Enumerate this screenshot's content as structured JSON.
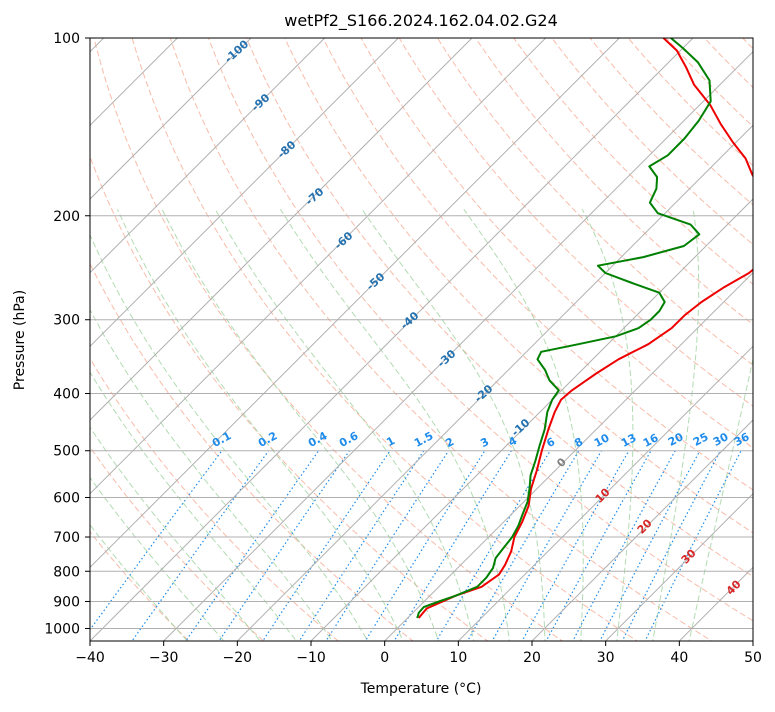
{
  "chart_data": {
    "type": "line",
    "subtype": "skew-t log-p diagram",
    "title": "wetPf2_S166.2024.162.04.02.G24",
    "xlabel": "Temperature (°C)",
    "ylabel": "Pressure (hPa)",
    "xlim": [
      -40,
      50
    ],
    "ylim": [
      1050,
      100
    ],
    "yscale": "log",
    "grid": true,
    "x_ticks": [
      -40,
      -30,
      -20,
      -10,
      0,
      10,
      20,
      30,
      40,
      50
    ],
    "y_ticks": [
      1000,
      900,
      800,
      700,
      600,
      500,
      400,
      300,
      200,
      100
    ],
    "series": [
      {
        "kind": "temperature",
        "color": "#ee0000",
        "points": [
          {
            "p": 960,
            "t": 1.5
          },
          {
            "p": 925,
            "t": 1.3
          },
          {
            "p": 880,
            "t": 3.5
          },
          {
            "p": 850,
            "t": 5.8
          },
          {
            "p": 810,
            "t": 6.5
          },
          {
            "p": 780,
            "t": 6.0
          },
          {
            "p": 740,
            "t": 5.0
          },
          {
            "p": 700,
            "t": 3.5
          },
          {
            "p": 660,
            "t": 2.5
          },
          {
            "p": 620,
            "t": 1.2
          },
          {
            "p": 580,
            "t": -0.8
          },
          {
            "p": 540,
            "t": -2.5
          },
          {
            "p": 500,
            "t": -4.5
          },
          {
            "p": 460,
            "t": -6.5
          },
          {
            "p": 430,
            "t": -8.0
          },
          {
            "p": 410,
            "t": -8.8
          },
          {
            "p": 395,
            "t": -8.6
          },
          {
            "p": 370,
            "t": -7.6
          },
          {
            "p": 350,
            "t": -6.5
          },
          {
            "p": 330,
            "t": -4.5
          },
          {
            "p": 310,
            "t": -3.5
          },
          {
            "p": 295,
            "t": -3.5
          },
          {
            "p": 280,
            "t": -3.0
          },
          {
            "p": 265,
            "t": -2.0
          },
          {
            "p": 250,
            "t": -0.5
          },
          {
            "p": 240,
            "t": -0.2
          },
          {
            "p": 230,
            "t": -2.0
          },
          {
            "p": 215,
            "t": -4.5
          },
          {
            "p": 200,
            "t": -6.5
          },
          {
            "p": 185,
            "t": -9.0
          },
          {
            "p": 170,
            "t": -13.5
          },
          {
            "p": 160,
            "t": -16.5
          },
          {
            "p": 150,
            "t": -20.5
          },
          {
            "p": 140,
            "t": -24.5
          },
          {
            "p": 130,
            "t": -28.5
          },
          {
            "p": 120,
            "t": -33.5
          },
          {
            "p": 112,
            "t": -37.0
          },
          {
            "p": 105,
            "t": -40.5
          },
          {
            "p": 100,
            "t": -44.0
          }
        ]
      },
      {
        "kind": "dewpoint",
        "color": "#008000",
        "points": [
          {
            "p": 960,
            "t": 1.3
          },
          {
            "p": 940,
            "t": 0.8
          },
          {
            "p": 920,
            "t": 0.7
          },
          {
            "p": 900,
            "t": 2.0
          },
          {
            "p": 880,
            "t": 3.5
          },
          {
            "p": 850,
            "t": 5.2
          },
          {
            "p": 820,
            "t": 5.2
          },
          {
            "p": 790,
            "t": 4.8
          },
          {
            "p": 760,
            "t": 3.8
          },
          {
            "p": 730,
            "t": 3.5
          },
          {
            "p": 700,
            "t": 3.2
          },
          {
            "p": 670,
            "t": 2.5
          },
          {
            "p": 640,
            "t": 1.5
          },
          {
            "p": 610,
            "t": 0.5
          },
          {
            "p": 580,
            "t": -1.0
          },
          {
            "p": 550,
            "t": -2.7
          },
          {
            "p": 520,
            "t": -4.0
          },
          {
            "p": 490,
            "t": -5.5
          },
          {
            "p": 460,
            "t": -7.0
          },
          {
            "p": 430,
            "t": -9.0
          },
          {
            "p": 410,
            "t": -10.0
          },
          {
            "p": 395,
            "t": -10.4
          },
          {
            "p": 380,
            "t": -13.0
          },
          {
            "p": 365,
            "t": -15.0
          },
          {
            "p": 350,
            "t": -17.5
          },
          {
            "p": 340,
            "t": -18.0
          },
          {
            "p": 330,
            "t": -14.0
          },
          {
            "p": 320,
            "t": -10.0
          },
          {
            "p": 310,
            "t": -8.0
          },
          {
            "p": 300,
            "t": -7.5
          },
          {
            "p": 290,
            "t": -7.5
          },
          {
            "p": 280,
            "t": -8.0
          },
          {
            "p": 270,
            "t": -10.0
          },
          {
            "p": 260,
            "t": -15.0
          },
          {
            "p": 250,
            "t": -20.0
          },
          {
            "p": 243,
            "t": -22.0
          },
          {
            "p": 235,
            "t": -17.0
          },
          {
            "p": 225,
            "t": -13.0
          },
          {
            "p": 215,
            "t": -12.5
          },
          {
            "p": 207,
            "t": -15.0
          },
          {
            "p": 198,
            "t": -21.0
          },
          {
            "p": 190,
            "t": -23.5
          },
          {
            "p": 180,
            "t": -24.5
          },
          {
            "p": 172,
            "t": -26.0
          },
          {
            "p": 165,
            "t": -28.5
          },
          {
            "p": 158,
            "t": -27.5
          },
          {
            "p": 148,
            "t": -27.5
          },
          {
            "p": 138,
            "t": -28.0
          },
          {
            "p": 128,
            "t": -29.0
          },
          {
            "p": 118,
            "t": -32.0
          },
          {
            "p": 110,
            "t": -36.0
          },
          {
            "p": 104,
            "t": -40.0
          },
          {
            "p": 100,
            "t": -43.0
          }
        ]
      }
    ],
    "dry_adiabat_labels": [
      "-100",
      "-90",
      "-80",
      "-70",
      "-60",
      "-50",
      "-40",
      "-30",
      "-20",
      "-10"
    ],
    "mixing_ratio_labels": [
      "0.1",
      "0.2",
      "0.4",
      "0.6",
      "1",
      "1.5",
      "2",
      "3",
      "4",
      "6",
      "8",
      "10",
      "13",
      "16",
      "20",
      "25",
      "30",
      "36"
    ],
    "moist_adiabat_labels": [
      "0",
      "10",
      "20",
      "30",
      "40"
    ],
    "colors": {
      "isotherm": "#b0b0b0",
      "isobar": "#b0b0b0",
      "dry_adiabat": "#f5a58c",
      "moist_adiabat": "#9fd29f",
      "mixing_ratio": "#1f8ceb",
      "dry_label": "#2472b0",
      "moist_label": "#d62728",
      "zero_label": "#808080",
      "outer_curve": "#d9b99b"
    }
  }
}
